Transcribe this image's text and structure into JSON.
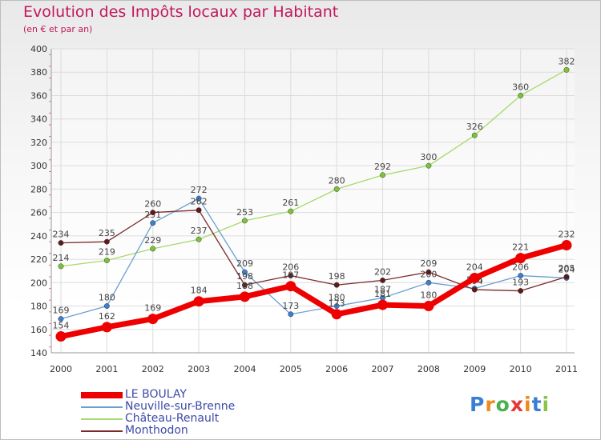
{
  "title": "Evolution des Impôts locaux par Habitant",
  "subtitle": "(en € et par an)",
  "logo": {
    "letters": [
      "P",
      "r",
      "o",
      "x",
      "i",
      "t",
      "i"
    ],
    "colors": [
      "#3b7fd4",
      "#ef8a1c",
      "#4caf50",
      "#e53935",
      "#ef8a1c",
      "#3b7fd4",
      "#8bc34a"
    ]
  },
  "chart_data": {
    "type": "line",
    "title": "Evolution des Impôts locaux par Habitant",
    "subtitle": "(en € et par an)",
    "x": [
      "2000",
      "2001",
      "2002",
      "2003",
      "2004",
      "2005",
      "2006",
      "2007",
      "2008",
      "2009",
      "2010",
      "2011"
    ],
    "ylim": [
      140,
      400
    ],
    "yticks": [
      140,
      160,
      180,
      200,
      220,
      240,
      260,
      280,
      300,
      320,
      340,
      360,
      380,
      400
    ],
    "grid": true,
    "legend_position": "bottom-left",
    "series": [
      {
        "name": "Château-Renault",
        "color": "#a6d96a",
        "point_color": "#7cc436",
        "values": [
          214,
          219,
          229,
          237,
          253,
          261,
          280,
          292,
          300,
          326,
          360,
          382
        ],
        "labels": [
          "214",
          "219",
          "229",
          "237",
          "253",
          "261",
          "280",
          "292",
          "300",
          "326",
          "360",
          "382"
        ]
      },
      {
        "name": "Neuville-sur-Brenne",
        "color": "#6a9fd0",
        "point_color": "#3b7fd4",
        "values": [
          169,
          180,
          251,
          272,
          209,
          173,
          180,
          187,
          200,
          195,
          206,
          204
        ],
        "labels": [
          "169",
          "180",
          "251",
          "272",
          "209",
          "173",
          "180",
          "187",
          "200",
          "195",
          "206",
          "204"
        ]
      },
      {
        "name": "Monthodon",
        "color": "#7a2a2a",
        "point_color": "#5e1a1a",
        "values": [
          234,
          235,
          260,
          262,
          198,
          206,
          198,
          202,
          209,
          194,
          193,
          205
        ],
        "labels": [
          "234",
          "235",
          "260",
          "262",
          "198",
          "206",
          "198",
          "202",
          "209",
          "194",
          "193",
          "205"
        ]
      },
      {
        "name": "LE BOULAY",
        "color": "#ee0000",
        "point_color": "#ee0000",
        "values": [
          154,
          162,
          169,
          184,
          188,
          197,
          173,
          181,
          180,
          204,
          221,
          232
        ],
        "labels": [
          "154",
          "162",
          "169",
          "184",
          "188",
          "197",
          "173",
          "181",
          "180",
          "204",
          "221",
          "232"
        ]
      }
    ]
  }
}
